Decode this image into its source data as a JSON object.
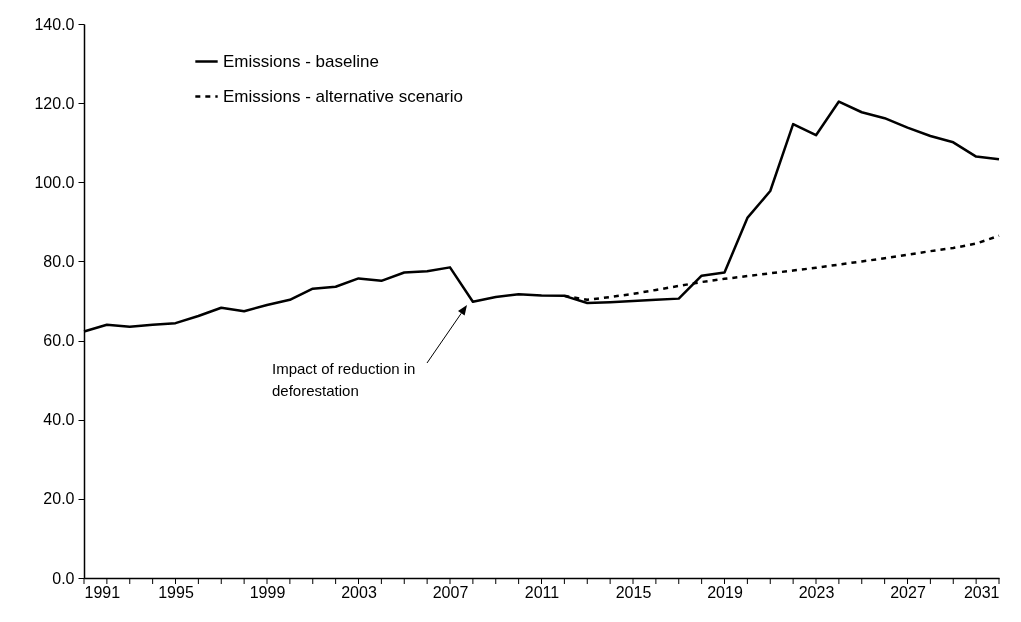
{
  "chart_data": {
    "type": "line",
    "xlim": [
      1991,
      2031
    ],
    "ylim": [
      0,
      140
    ],
    "xticks": [
      1991,
      {
        "value": 1992,
        "label": null
      },
      {
        "value": 1993,
        "label": null
      },
      {
        "value": 1994,
        "label": null
      },
      1995,
      {
        "value": 1996,
        "label": null
      },
      {
        "value": 1997,
        "label": null
      },
      {
        "value": 1998,
        "label": null
      },
      1999,
      {
        "value": 2000,
        "label": null
      },
      {
        "value": 2001,
        "label": null
      },
      {
        "value": 2002,
        "label": null
      },
      2003,
      {
        "value": 2004,
        "label": null
      },
      {
        "value": 2005,
        "label": null
      },
      {
        "value": 2006,
        "label": null
      },
      2007,
      {
        "value": 2008,
        "label": null
      },
      {
        "value": 2009,
        "label": null
      },
      {
        "value": 2010,
        "label": null
      },
      2011,
      {
        "value": 2012,
        "label": null
      },
      {
        "value": 2013,
        "label": null
      },
      {
        "value": 2014,
        "label": null
      },
      2015,
      {
        "value": 2016,
        "label": null
      },
      {
        "value": 2017,
        "label": null
      },
      {
        "value": 2018,
        "label": null
      },
      2019,
      {
        "value": 2020,
        "label": null
      },
      {
        "value": 2021,
        "label": null
      },
      {
        "value": 2022,
        "label": null
      },
      2023,
      {
        "value": 2024,
        "label": null
      },
      {
        "value": 2025,
        "label": null
      },
      {
        "value": 2026,
        "label": null
      },
      2027,
      {
        "value": 2028,
        "label": null
      },
      {
        "value": 2029,
        "label": null
      },
      {
        "value": 2030,
        "label": null
      },
      2031
    ],
    "yticks": [
      {
        "value": 0,
        "label": "0.0"
      },
      {
        "value": 20,
        "label": "20.0"
      },
      {
        "value": 40,
        "label": "40.0"
      },
      {
        "value": 60,
        "label": "60.0"
      },
      {
        "value": 80,
        "label": "80.0"
      },
      {
        "value": 100,
        "label": "100.0"
      },
      {
        "value": 120,
        "label": "120.0"
      },
      {
        "value": 140,
        "label": "140.0"
      }
    ],
    "grid": false,
    "legend": "top left",
    "marker": "none",
    "series": [
      {
        "name": "Emissions - baseline",
        "color": "#000000",
        "line_style": "solid",
        "x": [
          1991,
          1992,
          1993,
          1994,
          1995,
          1996,
          1997,
          1998,
          1999,
          2000,
          2001,
          2002,
          2003,
          2004,
          2005,
          2006,
          2007,
          2008,
          2009,
          2010,
          2011,
          2012,
          2013,
          2014,
          2015,
          2016,
          2017,
          2018,
          2019,
          2020,
          2021,
          2022,
          2023,
          2024,
          2025,
          2026,
          2027,
          2028,
          2029,
          2030,
          2031
        ],
        "values": [
          62.3,
          64.0,
          63.5,
          64.0,
          64.4,
          66.2,
          68.3,
          67.4,
          69.0,
          70.3,
          73.1,
          73.6,
          75.7,
          75.1,
          77.2,
          77.5,
          78.5,
          69.8,
          71.0,
          71.7,
          71.4,
          71.3,
          69.5,
          69.7,
          70.0,
          70.3,
          70.6,
          76.4,
          77.2,
          91.0,
          97.8,
          114.7,
          111.9,
          120.4,
          117.7,
          116.2,
          113.8,
          111.7,
          110.1,
          106.5,
          105.8
        ]
      },
      {
        "name": "Emissions - alternative scenario",
        "color": "#000000",
        "line_style": "dashed",
        "x": [
          2012,
          2013,
          2014,
          2015,
          2016,
          2017,
          2018,
          2019,
          2020,
          2021,
          2022,
          2023,
          2024,
          2025,
          2026,
          2027,
          2028,
          2029,
          2030,
          2031
        ],
        "values": [
          71.3,
          70.3,
          71.0,
          71.8,
          72.8,
          73.8,
          74.8,
          75.6,
          76.3,
          77.0,
          77.7,
          78.4,
          79.2,
          80.0,
          80.8,
          81.7,
          82.6,
          83.4,
          84.5,
          86.5
        ]
      }
    ],
    "annotations": [
      "Impact of reduction in\ndeforestation"
    ]
  }
}
